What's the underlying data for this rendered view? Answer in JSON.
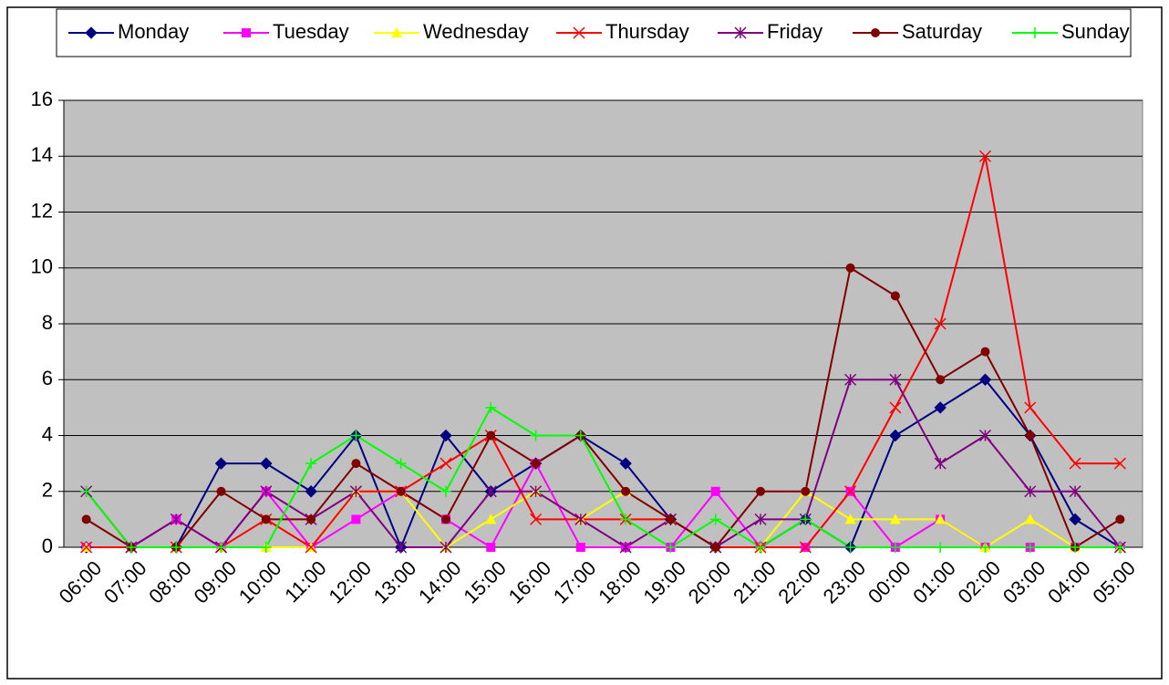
{
  "chart_data": {
    "type": "line",
    "categories": [
      "06:00",
      "07:00",
      "08:00",
      "09:00",
      "10:00",
      "11:00",
      "12:00",
      "13:00",
      "14:00",
      "15:00",
      "16:00",
      "17:00",
      "18:00",
      "19:00",
      "20:00",
      "21:00",
      "22:00",
      "23:00",
      "00:00",
      "01:00",
      "02:00",
      "03:00",
      "04:00",
      "05:00"
    ],
    "series": [
      {
        "name": "Monday",
        "color": "#000080",
        "marker": "diamond",
        "values": [
          0,
          0,
          0,
          3,
          3,
          2,
          4,
          0,
          4,
          2,
          3,
          4,
          3,
          1,
          0,
          0,
          1,
          0,
          4,
          5,
          6,
          4,
          1,
          0
        ]
      },
      {
        "name": "Tuesday",
        "color": "#ff00ff",
        "marker": "square",
        "values": [
          0,
          0,
          1,
          0,
          2,
          0,
          1,
          2,
          1,
          0,
          3,
          0,
          0,
          0,
          2,
          0,
          0,
          2,
          0,
          1,
          0,
          0,
          0,
          0
        ]
      },
      {
        "name": "Wednesday",
        "color": "#ffff00",
        "marker": "triangle",
        "values": [
          0,
          0,
          0,
          0,
          0,
          0,
          2,
          2,
          0,
          1,
          2,
          1,
          2,
          1,
          0,
          0,
          2,
          1,
          1,
          1,
          0,
          1,
          0,
          0
        ]
      },
      {
        "name": "Thursday",
        "color": "#ff0000",
        "marker": "x",
        "values": [
          0,
          0,
          0,
          0,
          1,
          0,
          2,
          2,
          3,
          4,
          1,
          1,
          1,
          1,
          0,
          0,
          0,
          2,
          5,
          8,
          14,
          5,
          3,
          3
        ]
      },
      {
        "name": "Friday",
        "color": "#800080",
        "marker": "star",
        "values": [
          2,
          0,
          1,
          0,
          2,
          1,
          2,
          0,
          0,
          2,
          2,
          1,
          0,
          1,
          0,
          1,
          1,
          6,
          6,
          3,
          4,
          2,
          2,
          0
        ]
      },
      {
        "name": "Saturday",
        "color": "#800000",
        "marker": "circle",
        "values": [
          1,
          0,
          0,
          2,
          1,
          1,
          3,
          2,
          1,
          4,
          3,
          4,
          2,
          1,
          0,
          2,
          2,
          10,
          9,
          6,
          7,
          4,
          0,
          1
        ]
      },
      {
        "name": "Sunday",
        "color": "#00ff00",
        "marker": "plus",
        "values": [
          2,
          0,
          0,
          0,
          0,
          3,
          4,
          3,
          2,
          5,
          4,
          4,
          1,
          0,
          1,
          0,
          1,
          0,
          0,
          0,
          0,
          0,
          0,
          0
        ]
      }
    ],
    "ylim": [
      0,
      16
    ],
    "yticks": [
      0,
      2,
      4,
      6,
      8,
      10,
      12,
      14,
      16
    ],
    "grid": true,
    "legend": "top"
  }
}
